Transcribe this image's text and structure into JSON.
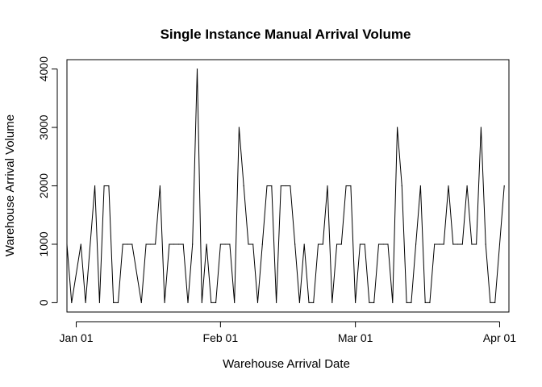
{
  "chart_data": {
    "type": "line",
    "title": "Single Instance Manual Arrival Volume",
    "xlabel": "Warehouse Arrival Date",
    "ylabel": "Warehouse Arrival Volume",
    "x_ticks": [
      "Jan 01",
      "Feb 01",
      "Mar 01",
      "Apr 01"
    ],
    "x_tick_dates": [
      "2024-01-01",
      "2024-02-01",
      "2024-03-01",
      "2024-04-01"
    ],
    "y_ticks": [
      0,
      1000,
      2000,
      3000,
      4000
    ],
    "xlim": [
      "2023-12-30",
      "2024-04-03"
    ],
    "ylim": [
      -160,
      4160
    ],
    "grid": false,
    "legend": "none",
    "line_color": "#000000",
    "series": [
      {
        "x": [
          "2023-12-30",
          "2023-12-31",
          "2024-01-02",
          "2024-01-03",
          "2024-01-05",
          "2024-01-06",
          "2024-01-07",
          "2024-01-08",
          "2024-01-09",
          "2024-01-10",
          "2024-01-11",
          "2024-01-12",
          "2024-01-13",
          "2024-01-15",
          "2024-01-16",
          "2024-01-17",
          "2024-01-18",
          "2024-01-19",
          "2024-01-20",
          "2024-01-21",
          "2024-01-22",
          "2024-01-23",
          "2024-01-24",
          "2024-01-25",
          "2024-01-26",
          "2024-01-27",
          "2024-01-28",
          "2024-01-29",
          "2024-01-30",
          "2024-01-31",
          "2024-02-01",
          "2024-02-02",
          "2024-02-03",
          "2024-02-04",
          "2024-02-05",
          "2024-02-06",
          "2024-02-07",
          "2024-02-08",
          "2024-02-09",
          "2024-02-10",
          "2024-02-11",
          "2024-02-12",
          "2024-02-13",
          "2024-02-14",
          "2024-02-15",
          "2024-02-16",
          "2024-02-17",
          "2024-02-18",
          "2024-02-19",
          "2024-02-20",
          "2024-02-21",
          "2024-02-22",
          "2024-02-23",
          "2024-02-24",
          "2024-02-25",
          "2024-02-26",
          "2024-02-27",
          "2024-02-28",
          "2024-02-29",
          "2024-03-01",
          "2024-03-02",
          "2024-03-03",
          "2024-03-04",
          "2024-03-05",
          "2024-03-06",
          "2024-03-07",
          "2024-03-08",
          "2024-03-09",
          "2024-03-10",
          "2024-03-11",
          "2024-03-12",
          "2024-03-13",
          "2024-03-14",
          "2024-03-15",
          "2024-03-16",
          "2024-03-17",
          "2024-03-18",
          "2024-03-19",
          "2024-03-20",
          "2024-03-21",
          "2024-03-22",
          "2024-03-23",
          "2024-03-24",
          "2024-03-25",
          "2024-03-26",
          "2024-03-27",
          "2024-03-28",
          "2024-03-29",
          "2024-03-30",
          "2024-03-31",
          "2024-04-01",
          "2024-04-02"
        ],
        "y": [
          1000,
          0,
          1000,
          0,
          2000,
          0,
          2000,
          2000,
          0,
          0,
          1000,
          1000,
          1000,
          0,
          1000,
          1000,
          1000,
          2000,
          0,
          1000,
          1000,
          1000,
          1000,
          0,
          1000,
          4000,
          0,
          1000,
          0,
          0,
          1000,
          1000,
          1000,
          0,
          3000,
          2000,
          1000,
          1000,
          0,
          1000,
          2000,
          2000,
          0,
          2000,
          2000,
          2000,
          1000,
          0,
          1000,
          0,
          0,
          1000,
          1000,
          2000,
          0,
          1000,
          1000,
          2000,
          2000,
          0,
          1000,
          1000,
          0,
          0,
          1000,
          1000,
          1000,
          0,
          3000,
          2000,
          0,
          0,
          1000,
          2000,
          0,
          0,
          1000,
          1000,
          1000,
          2000,
          1000,
          1000,
          1000,
          2000,
          1000,
          1000,
          3000,
          1000,
          0,
          0,
          1000,
          2000
        ]
      }
    ]
  }
}
